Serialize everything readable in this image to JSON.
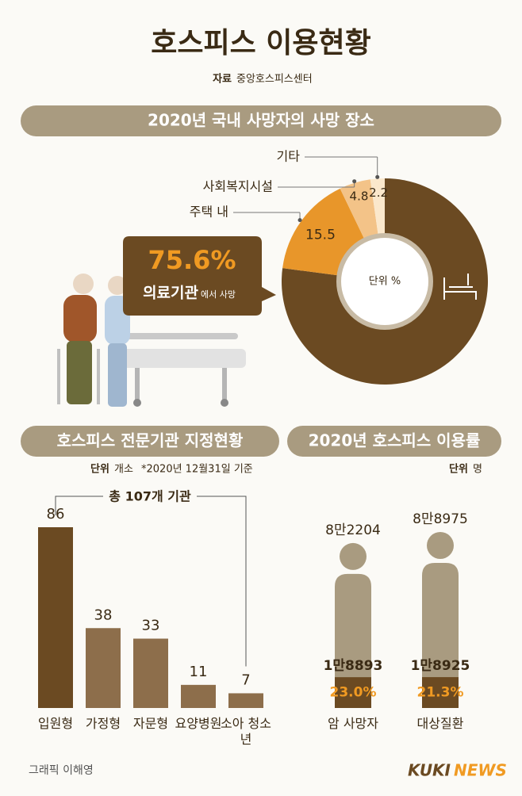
{
  "header": {
    "title": "호스피스 이용현황",
    "source_label": "자료",
    "source": "중앙호스피스센터"
  },
  "chart_data": [
    {
      "type": "donut",
      "title": "2020년 국내 사망자의 사망 장소",
      "unit": "단위 %",
      "categories": [
        "의료기관",
        "주택 내",
        "사회복지시설",
        "기타"
      ],
      "values": [
        75.6,
        15.5,
        4.8,
        2.2
      ],
      "value_labels": [
        "75.6%",
        "15.5",
        "4.8",
        "2.2"
      ],
      "colors": [
        "#6b4a22",
        "#e8962a",
        "#f3c388",
        "#fbe8cc"
      ],
      "callout_suffix": "에서 사망"
    },
    {
      "type": "bar",
      "title": "호스피스 전문기관 지정현황",
      "unit_label": "단위",
      "unit": "개소",
      "note": "*2020년 12월31일 기준",
      "annotation": "총 107개 기관",
      "categories": [
        "입원형",
        "가정형",
        "자문형",
        "요양병원",
        "소아 청소년"
      ],
      "values": [
        86,
        38,
        33,
        11,
        7
      ],
      "colors": [
        "#6b4a22",
        "#8d6e4b",
        "#8d6e4b",
        "#8d6e4b",
        "#8d6e4b"
      ]
    },
    {
      "type": "pictogram",
      "title": "2020년 호스피스 이용률",
      "unit_label": "단위",
      "unit": "명",
      "categories": [
        "암 사망자",
        "대상질환"
      ],
      "totals": {
        "values": [
          82204,
          88975
        ],
        "value_labels": [
          "8만2204",
          "8만8975"
        ]
      },
      "users": {
        "values": [
          18893,
          18925
        ],
        "value_labels": [
          "1만8893",
          "1만8925"
        ]
      },
      "rates": {
        "values": [
          23.0,
          21.3
        ],
        "value_labels": [
          "23.0%",
          "21.3%"
        ]
      },
      "colors": {
        "body": "#a99b80",
        "filled": "#6b4a22",
        "rate": "#f09a22"
      }
    }
  ],
  "footer": {
    "credit": "그래픽 이해영",
    "logo": [
      "KUKI",
      "NEWS"
    ]
  }
}
